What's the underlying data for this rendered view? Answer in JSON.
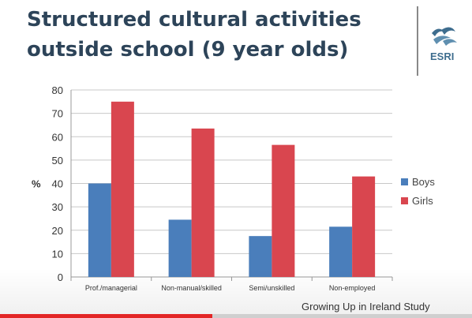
{
  "slide": {
    "title": "Structured cultural activities outside school (9 year olds)",
    "source": "Growing Up in Ireland Study"
  },
  "logo": {
    "text": "ESRI"
  },
  "video": {
    "progress": 0.45
  },
  "colors": {
    "boys": "#4a7ebb",
    "girls": "#d9464f",
    "title": "#2d4459"
  },
  "chart_data": {
    "type": "bar",
    "title": "",
    "xlabel": "",
    "ylabel": "%",
    "ylim": [
      0,
      80
    ],
    "yticks": [
      0,
      10,
      20,
      30,
      40,
      50,
      60,
      70,
      80
    ],
    "grid": true,
    "legend": "right",
    "categories": [
      "Prof./managerial",
      "Non-manual/skilled",
      "Semi/unskilled",
      "Non-employed"
    ],
    "series": [
      {
        "name": "Boys",
        "values": [
          40,
          24.5,
          17.5,
          21.5
        ]
      },
      {
        "name": "Girls",
        "values": [
          75,
          63.5,
          56.5,
          43
        ]
      }
    ]
  }
}
